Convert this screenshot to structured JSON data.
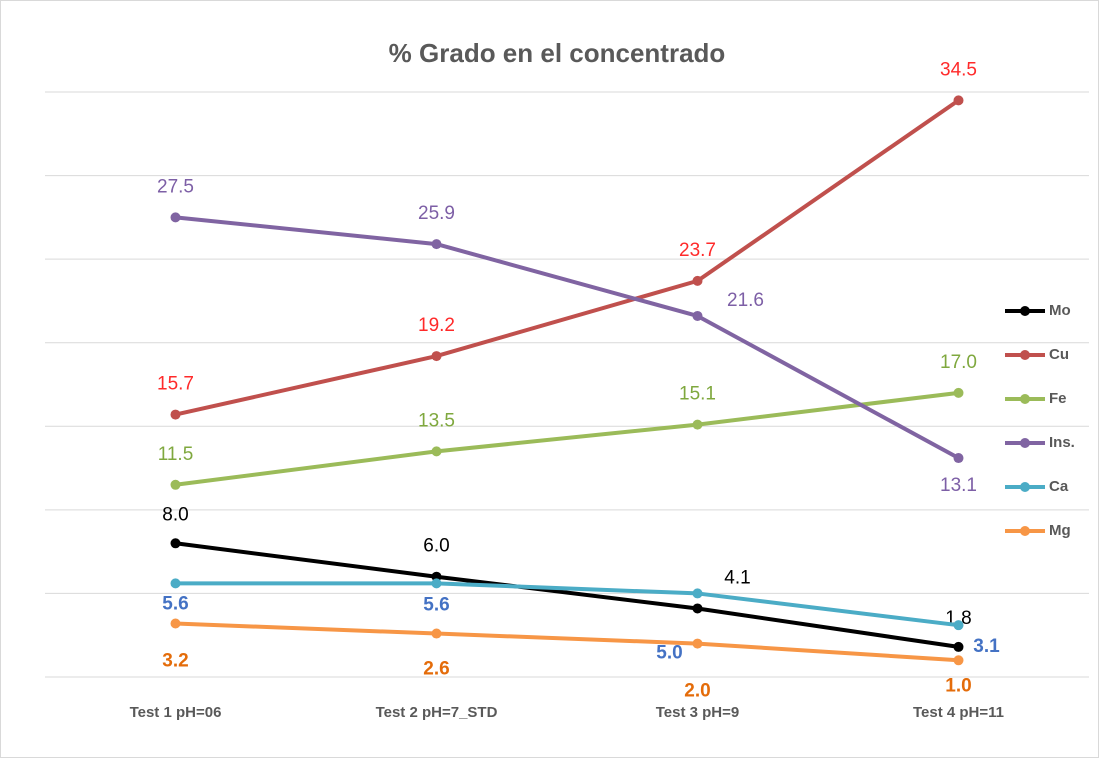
{
  "chart_data": {
    "type": "line",
    "title": "% Grado  en el concentrado",
    "categories": [
      "Test 1 pH=06",
      "Test 2 pH=7_STD",
      "Test 3 pH=9",
      "Test 4 pH=11"
    ],
    "ylim": [
      0,
      35
    ],
    "yticks": [
      0,
      5,
      10,
      15,
      20,
      25,
      30,
      35
    ],
    "grid": true,
    "legend": "right",
    "series": [
      {
        "name": "Mo",
        "color": "#000000",
        "label_color": "#000000",
        "values": [
          8.0,
          6.0,
          4.1,
          1.8
        ],
        "value_labels": [
          "8.0",
          "6.0",
          "4.1",
          "1.8"
        ]
      },
      {
        "name": "Cu",
        "color": "#c0504d",
        "label_color": "#ff2a2a",
        "values": [
          15.7,
          19.2,
          23.7,
          34.5
        ],
        "value_labels": [
          "15.7",
          "19.2",
          "23.7",
          "34.5"
        ]
      },
      {
        "name": "Fe",
        "color": "#9bbb59",
        "label_color": "#7fa83e",
        "values": [
          11.5,
          13.5,
          15.1,
          17.0
        ],
        "value_labels": [
          "11.5",
          "13.5",
          "15.1",
          "17.0"
        ]
      },
      {
        "name": "Ins.",
        "color": "#8064a2",
        "label_color": "#7d5fa6",
        "values": [
          27.5,
          25.9,
          21.6,
          13.1
        ],
        "value_labels": [
          "27.5",
          "25.9",
          "21.6",
          "13.1"
        ]
      },
      {
        "name": "Ca",
        "color": "#4bacc6",
        "label_color": "#4472c4",
        "values": [
          5.6,
          5.6,
          5.0,
          3.1
        ],
        "value_labels": [
          "5.6",
          "5.6",
          "5.0",
          "3.1"
        ]
      },
      {
        "name": "Mg",
        "color": "#f79646",
        "label_color": "#e46c0a",
        "values": [
          3.2,
          2.6,
          2.0,
          1.0
        ],
        "value_labels": [
          "3.2",
          "2.6",
          "2.0",
          "1.0"
        ]
      }
    ]
  }
}
